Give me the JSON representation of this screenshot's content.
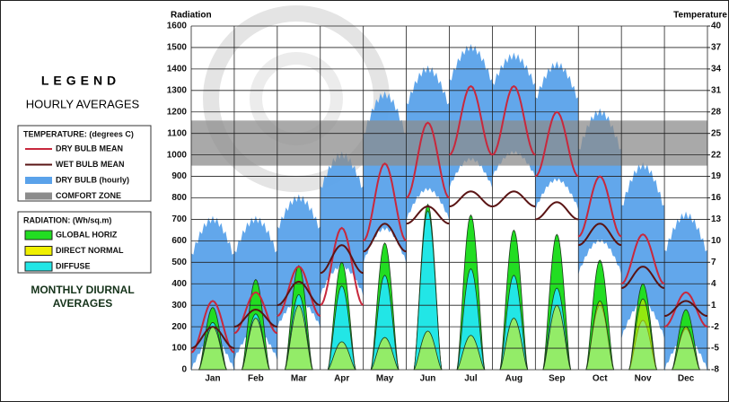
{
  "chart_data": {
    "type": "diurnal",
    "y_label": "Radiation",
    "y2_label": "Temperature",
    "legend_title": "LEGEND",
    "legend_subtitle": "HOURLY AVERAGES",
    "note": [
      "MONTHLY DIURNAL",
      "AVERAGES"
    ],
    "categories": [
      "Jan",
      "Feb",
      "Mar",
      "Apr",
      "May",
      "Jun",
      "Jul",
      "Aug",
      "Sep",
      "Oct",
      "Nov",
      "Dec"
    ],
    "ylim": [
      0,
      1600
    ],
    "yticks": [
      0,
      100,
      200,
      300,
      400,
      500,
      600,
      700,
      800,
      900,
      1000,
      1100,
      1200,
      1300,
      1400,
      1500,
      1600
    ],
    "y2lim": [
      -8,
      40
    ],
    "y2ticks": [
      -8,
      -5,
      -2,
      1,
      4,
      7,
      10,
      13,
      16,
      19,
      22,
      25,
      28,
      31,
      34,
      37,
      40
    ],
    "grid": true,
    "groups": [
      {
        "title": "TEMPERATURE: (degrees C)",
        "series": [
          {
            "name": "DRY BULB MEAN",
            "color": "#c8283c",
            "axis": "y2",
            "kind": "curve",
            "values": [
              [
                -5.6,
                1.6
              ],
              [
                -2.9,
                2.8
              ],
              [
                -0.5,
                6.4
              ],
              [
                1,
                11.8
              ],
              [
                10,
                20.8
              ],
              [
                16,
                26.5
              ],
              [
                22,
                31.6
              ],
              [
                22,
                31.6
              ],
              [
                19,
                28
              ],
              [
                10.6,
                19
              ],
              [
                4,
                10.9
              ],
              [
                -2,
                2.8
              ]
            ]
          },
          {
            "name": "WET BULB MEAN",
            "color": "#5a1414",
            "axis": "y2",
            "kind": "curve",
            "values": [
              [
                -5,
                -2
              ],
              [
                -2,
                0.4
              ],
              [
                1,
                4.3
              ],
              [
                5.5,
                9.4
              ],
              [
                8.5,
                12.4
              ],
              [
                12.4,
                14.8
              ],
              [
                14.8,
                16.9
              ],
              [
                14.8,
                16.9
              ],
              [
                13,
                15.4
              ],
              [
                9.4,
                12.4
              ],
              [
                3.4,
                6.4
              ],
              [
                -0.5,
                1.6
              ]
            ]
          },
          {
            "name": "DRY BULB (hourly)",
            "color": "#5aa2ea",
            "axis": "y2",
            "kind": "band",
            "values": [
              [
                -8,
                13
              ],
              [
                -6.5,
                13
              ],
              [
                -2,
                16
              ],
              [
                2.5,
                22
              ],
              [
                7,
                30.4
              ],
              [
                13,
                34
              ],
              [
                17.5,
                37
              ],
              [
                19,
                35.8
              ],
              [
                14.5,
                34.6
              ],
              [
                5.5,
                28
              ],
              [
                -3.5,
                20.5
              ],
              [
                -8,
                13.6
              ]
            ]
          },
          {
            "name": "COMFORT ZONE",
            "color": "#8c8c8c",
            "axis": "y2",
            "kind": "zone",
            "range": [
              20.5,
              26.8
            ]
          }
        ]
      },
      {
        "title": "RADIATION: (Wh/sq.m)",
        "series": [
          {
            "name": "GLOBAL HORIZ",
            "color": "#22dd22",
            "kind": "bell",
            "values": [
              290,
              420,
              485,
              500,
              590,
              770,
              720,
              650,
              630,
              510,
              400,
              280
            ]
          },
          {
            "name": "DIRECT NORMAL",
            "color": "#f0f000",
            "kind": "bell",
            "values": [
              200,
              240,
              300,
              130,
              150,
              180,
              160,
              240,
              300,
              320,
              330,
              200
            ]
          },
          {
            "name": "DIFFUSE",
            "color": "#22e6e6",
            "kind": "bell",
            "values": [
              220,
              260,
              350,
              390,
              440,
              740,
              470,
              440,
              380,
              300,
              230,
              190
            ]
          }
        ]
      }
    ]
  }
}
